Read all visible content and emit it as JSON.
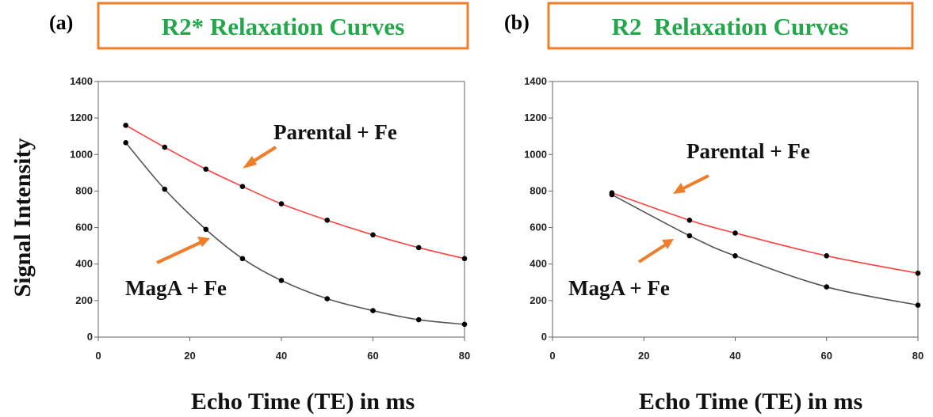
{
  "figure": {
    "ylabel": "Signal Intensity",
    "colors": {
      "title_border": "#f07d2a",
      "title_text": "#22a84a",
      "arrow": "#f07d2a",
      "parental_curve": "#ff4040",
      "maga_curve": "#555555",
      "points": "#000000"
    }
  },
  "chart_data": [
    {
      "type": "scatter",
      "panel_label": "(a)",
      "title": "R2* Relaxation Curves",
      "xlabel": "Echo Time (TE) in ms",
      "ylabel": "Signal Intensity",
      "xlim": [
        0,
        80
      ],
      "ylim": [
        0,
        1400
      ],
      "x_ticks": [
        "0",
        "20",
        "40",
        "60",
        "80"
      ],
      "y_ticks": [
        "0",
        "200",
        "400",
        "600",
        "800",
        "1000",
        "1200",
        "1400"
      ],
      "grid": false,
      "series": [
        {
          "name": "Parental + Fe",
          "x": [
            6,
            14.5,
            23.5,
            31.5,
            40,
            50,
            60,
            70,
            80
          ],
          "y": [
            1160,
            1040,
            920,
            825,
            730,
            640,
            560,
            490,
            430
          ]
        },
        {
          "name": "MagA + Fe",
          "x": [
            6,
            14.5,
            23.5,
            31.5,
            40,
            50,
            60,
            70,
            80
          ],
          "y": [
            1065,
            810,
            590,
            430,
            310,
            210,
            145,
            95,
            70
          ]
        }
      ]
    },
    {
      "type": "scatter",
      "panel_label": "(b)",
      "title": "R2  Relaxation Curves",
      "xlabel": "Echo Time (TE) in ms",
      "ylabel": "",
      "xlim": [
        0,
        80
      ],
      "ylim": [
        0,
        1400
      ],
      "x_ticks": [
        "0",
        "20",
        "40",
        "60",
        "80"
      ],
      "y_ticks": [
        "0",
        "200",
        "400",
        "600",
        "800",
        "1000",
        "1200",
        "1400"
      ],
      "grid": false,
      "series": [
        {
          "name": "Parental + Fe",
          "x": [
            13,
            30,
            40,
            60,
            80
          ],
          "y": [
            790,
            640,
            570,
            445,
            350
          ]
        },
        {
          "name": "MagA + Fe",
          "x": [
            13,
            30,
            40,
            60,
            80
          ],
          "y": [
            780,
            555,
            445,
            275,
            175
          ]
        }
      ]
    }
  ]
}
